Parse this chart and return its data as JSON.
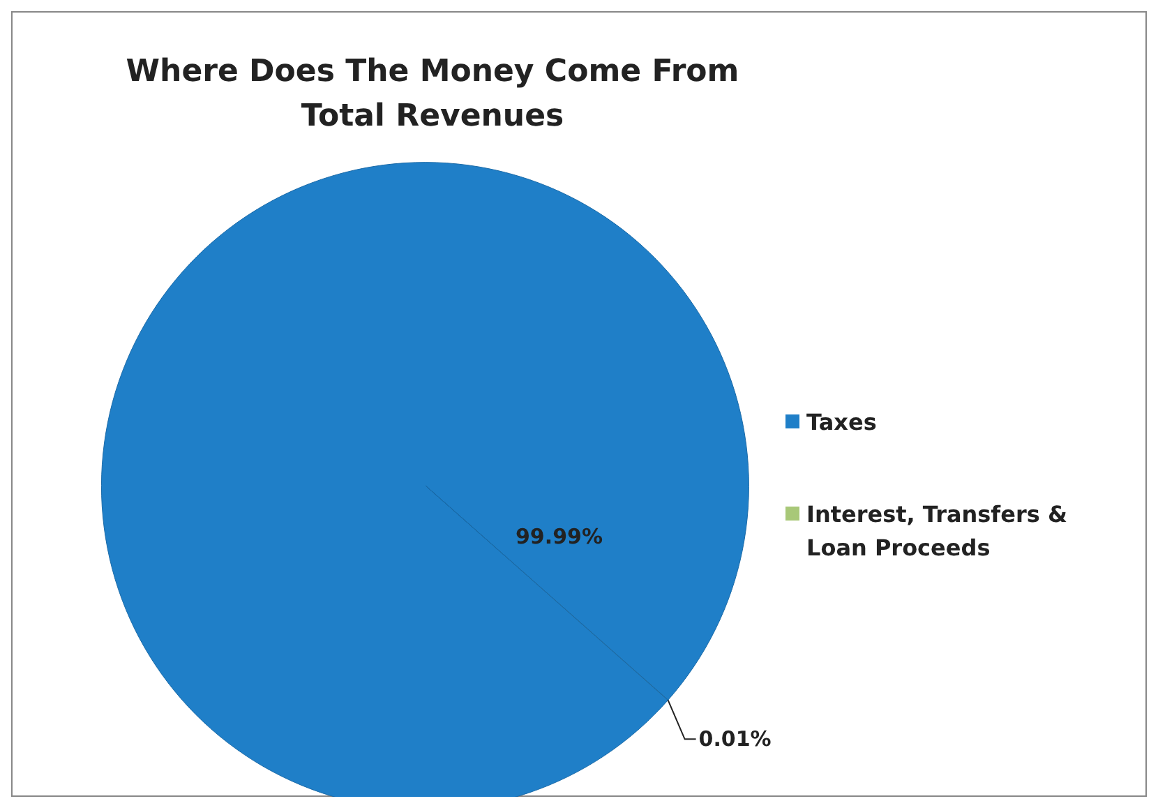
{
  "chart_data": {
    "type": "pie",
    "title": "Where Does The Money Come From\nTotal Revenues",
    "categories": [
      "Taxes",
      "Interest, Transfers & Loan Proceeds"
    ],
    "values": [
      99.99,
      0.01
    ],
    "colors": [
      "#1f7fc8",
      "#a8c878"
    ],
    "value_labels": [
      "99.99%",
      "0.01%"
    ],
    "legend": "right"
  }
}
